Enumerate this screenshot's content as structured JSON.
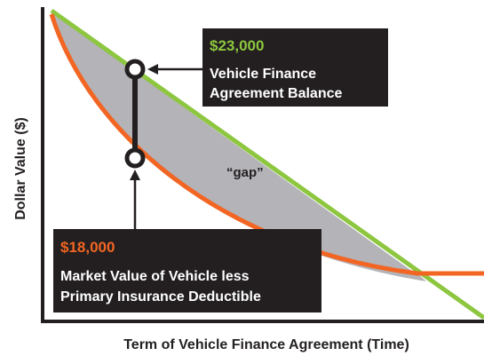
{
  "upper_callout": {
    "amount": "$23,000",
    "label": [
      "Vehicle Finance",
      "Agreement Balance"
    ]
  },
  "lower_callout": {
    "amount": "$18,000",
    "label": [
      "Market Value of Vehicle less",
      "Primary Insurance Deductible"
    ]
  },
  "gap_label": "“gap”",
  "y_axis_label": "Dollar Value ($)",
  "x_axis_label": "Term of Vehicle Finance Agreement (Time)"
}
